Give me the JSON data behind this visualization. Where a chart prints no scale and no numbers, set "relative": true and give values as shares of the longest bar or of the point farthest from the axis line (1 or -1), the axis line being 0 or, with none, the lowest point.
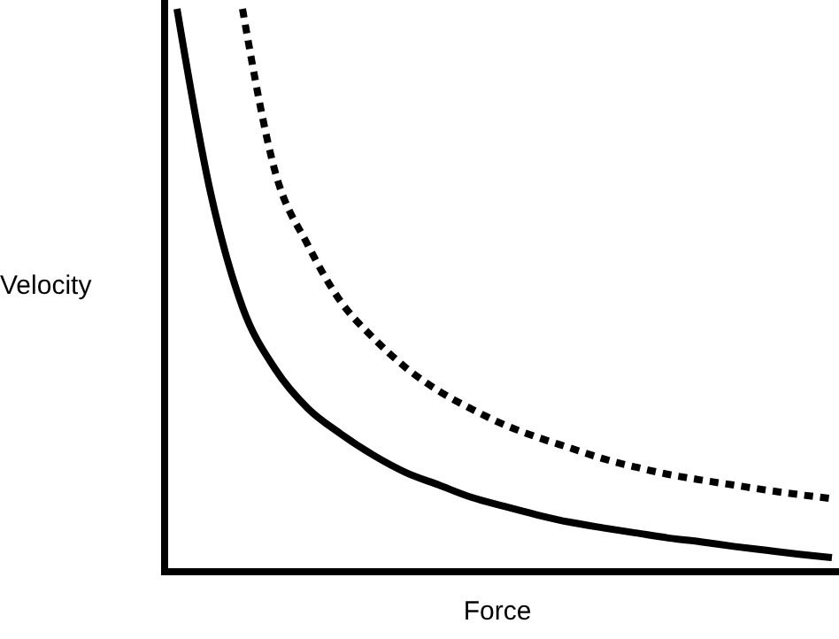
{
  "chart_data": {
    "type": "line",
    "relative": true,
    "xlabel": "Force",
    "ylabel": "Velocity",
    "categories": [
      null,
      null,
      null,
      null,
      null,
      null,
      null,
      null,
      null,
      null,
      null,
      null,
      null,
      null,
      null,
      null,
      null,
      null,
      null,
      null,
      null
    ],
    "marker": "none",
    "series": [
      {
        "color": "#000000",
        "line_style": "solid",
        "values": [
          1,
          0.68,
          0.47,
          0.36,
          0.29,
          0.245,
          0.207,
          0.176,
          0.154,
          0.132,
          0.116,
          0.101,
          0.088,
          0.078,
          0.069,
          0.06,
          0.053,
          0.045,
          0.038,
          0.031,
          0.025
        ]
      },
      {
        "color": "#000000",
        "line_style": "dotted",
        "values": [
          null,
          null,
          1,
          0.71,
          0.58,
          0.48,
          0.415,
          0.362,
          0.321,
          0.289,
          0.261,
          0.239,
          0.22,
          0.201,
          0.186,
          0.173,
          0.163,
          0.154,
          0.145,
          0.137,
          0.13
        ]
      }
    ]
  }
}
